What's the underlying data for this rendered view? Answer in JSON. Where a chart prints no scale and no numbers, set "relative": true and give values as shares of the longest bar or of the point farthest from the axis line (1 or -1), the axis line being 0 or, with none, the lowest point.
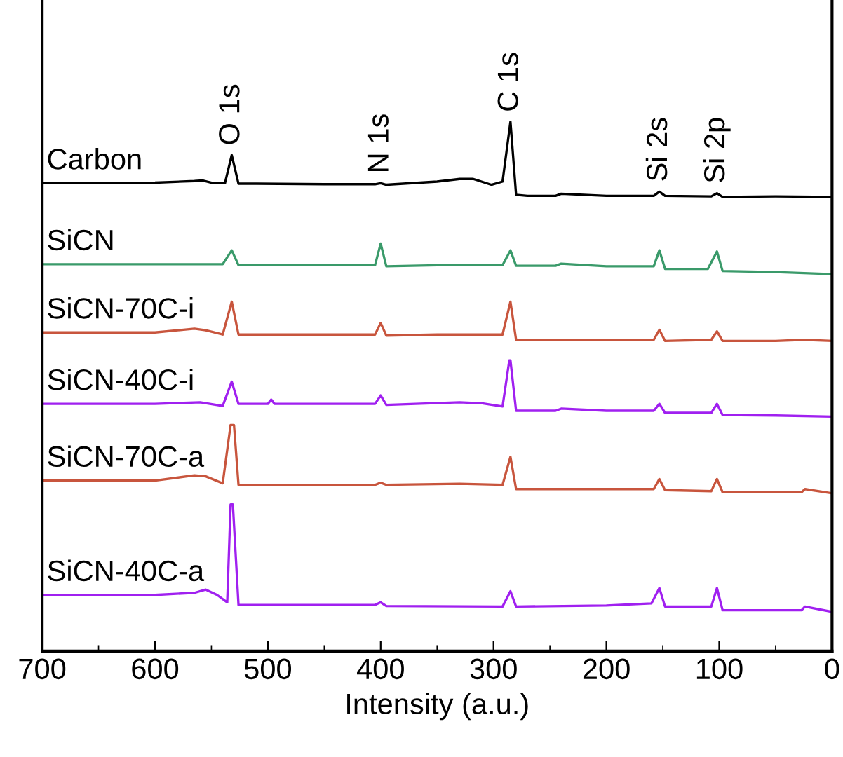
{
  "chart_data": {
    "type": "line",
    "relative": true,
    "xlabel": "Intensity (a.u.)",
    "xlim": [
      700,
      0
    ],
    "xticks": [
      0,
      100,
      200,
      300,
      400,
      500,
      600,
      700
    ],
    "grid": false,
    "legend": false,
    "marker": "none",
    "line_style": "solid",
    "annotations": [
      {
        "text": "O 1s",
        "x": 532,
        "y": 0.937
      },
      {
        "text": "N 1s",
        "x": 400,
        "y": 0.884
      },
      {
        "text": "C 1s",
        "x": 285,
        "y": 1.0
      },
      {
        "text": "Si 2s",
        "x": 153,
        "y": 0.868
      },
      {
        "text": "Si 2p",
        "x": 102,
        "y": 0.865
      }
    ],
    "series": [
      {
        "name": "Carbon",
        "color": "#000000",
        "x": [
          700,
          600,
          565,
          558,
          548,
          538,
          532,
          526,
          510,
          450,
          405,
          400,
          395,
          350,
          330,
          318,
          302,
          292,
          285,
          280,
          270,
          245,
          240,
          200,
          158,
          153,
          148,
          107,
          102,
          97,
          50,
          0
        ],
        "values": [
          0.884,
          0.885,
          0.888,
          0.889,
          0.884,
          0.884,
          0.937,
          0.883,
          0.883,
          0.882,
          0.882,
          0.884,
          0.881,
          0.887,
          0.892,
          0.892,
          0.881,
          0.887,
          1.0,
          0.862,
          0.86,
          0.86,
          0.864,
          0.86,
          0.86,
          0.868,
          0.86,
          0.859,
          0.865,
          0.858,
          0.859,
          0.858
        ]
      },
      {
        "name": "SiCN",
        "color": "#3a9a6a",
        "x": [
          700,
          600,
          540,
          532,
          526,
          450,
          405,
          400,
          395,
          350,
          292,
          285,
          280,
          245,
          240,
          200,
          158,
          153,
          148,
          110,
          102,
          97,
          50,
          0
        ],
        "values": [
          0.731,
          0.731,
          0.731,
          0.757,
          0.729,
          0.729,
          0.729,
          0.77,
          0.727,
          0.729,
          0.729,
          0.757,
          0.728,
          0.728,
          0.732,
          0.727,
          0.727,
          0.757,
          0.722,
          0.722,
          0.755,
          0.718,
          0.716,
          0.712
        ]
      },
      {
        "name": "SiCN-70C-i",
        "color": "#c8553d",
        "x": [
          700,
          600,
          565,
          555,
          540,
          532,
          526,
          450,
          405,
          400,
          395,
          350,
          292,
          285,
          280,
          200,
          158,
          153,
          148,
          107,
          102,
          97,
          50,
          25,
          0
        ],
        "values": [
          0.602,
          0.602,
          0.609,
          0.606,
          0.598,
          0.66,
          0.598,
          0.598,
          0.598,
          0.62,
          0.596,
          0.598,
          0.598,
          0.66,
          0.588,
          0.588,
          0.588,
          0.607,
          0.586,
          0.588,
          0.604,
          0.586,
          0.586,
          0.588,
          0.586
        ]
      },
      {
        "name": "SiCN-40C-i",
        "color": "#a020f0",
        "x": [
          700,
          600,
          560,
          540,
          532,
          526,
          500,
          497,
          494,
          450,
          405,
          400,
          395,
          330,
          310,
          292,
          286,
          285,
          280,
          245,
          240,
          200,
          158,
          153,
          148,
          107,
          102,
          97,
          50,
          0
        ],
        "values": [
          0.467,
          0.467,
          0.47,
          0.463,
          0.509,
          0.467,
          0.467,
          0.475,
          0.467,
          0.467,
          0.467,
          0.483,
          0.465,
          0.47,
          0.468,
          0.462,
          0.549,
          0.549,
          0.454,
          0.454,
          0.458,
          0.454,
          0.454,
          0.467,
          0.45,
          0.45,
          0.467,
          0.446,
          0.445,
          0.443
        ]
      },
      {
        "name": "SiCN-70C-a",
        "color": "#c8553d",
        "x": [
          700,
          600,
          565,
          555,
          540,
          533,
          530,
          526,
          450,
          405,
          400,
          395,
          330,
          292,
          285,
          280,
          200,
          158,
          153,
          148,
          107,
          102,
          97,
          50,
          27,
          24,
          0
        ],
        "values": [
          0.322,
          0.322,
          0.332,
          0.33,
          0.317,
          0.427,
          0.427,
          0.314,
          0.314,
          0.314,
          0.318,
          0.314,
          0.316,
          0.314,
          0.367,
          0.306,
          0.306,
          0.306,
          0.325,
          0.304,
          0.302,
          0.325,
          0.3,
          0.3,
          0.3,
          0.306,
          0.298
        ]
      },
      {
        "name": "SiCN-40C-a",
        "color": "#a020f0",
        "x": [
          700,
          600,
          565,
          555,
          545,
          536,
          533,
          531,
          526,
          450,
          405,
          400,
          395,
          292,
          285,
          280,
          200,
          160,
          153,
          148,
          107,
          102,
          97,
          50,
          27,
          24,
          0
        ],
        "values": [
          0.106,
          0.106,
          0.11,
          0.116,
          0.106,
          0.092,
          0.277,
          0.277,
          0.087,
          0.087,
          0.087,
          0.092,
          0.085,
          0.084,
          0.113,
          0.084,
          0.086,
          0.09,
          0.119,
          0.084,
          0.084,
          0.119,
          0.077,
          0.077,
          0.077,
          0.084,
          0.074
        ]
      }
    ]
  }
}
